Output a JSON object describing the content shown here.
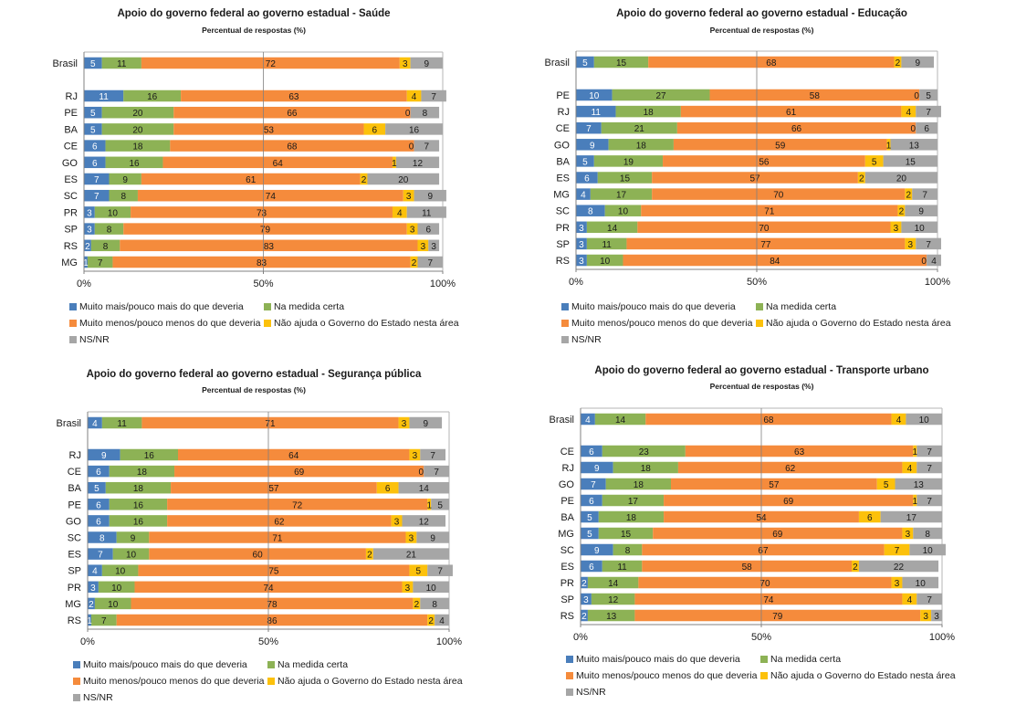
{
  "legend_labels": [
    "Muito mais/pouco mais do que deveria",
    "Na medida certa",
    "Muito menos/pouco menos do que deveria",
    "Não ajuda o Governo do Estado nesta área",
    "NS/NR"
  ],
  "colors": [
    "#4a7ebb",
    "#8db255",
    "#f58b3c",
    "#fcc10b",
    "#a6a6a6"
  ],
  "chart_data": [
    {
      "type": "bar",
      "stacked": true,
      "orientation": "horizontal",
      "title": "Apoio do governo federal ao governo estadual - Saúde",
      "subtitle": "Percentual de respostas (%)",
      "categories": [
        "Brasil",
        "RJ",
        "PE",
        "BA",
        "CE",
        "GO",
        "ES",
        "SC",
        "PR",
        "SP",
        "RS",
        "MG"
      ],
      "x_ticks": [
        "0%",
        "50%",
        "100%"
      ],
      "xlim": [
        0,
        100
      ],
      "legend_position": "bottom",
      "series": [
        {
          "name": "Muito mais/pouco mais do que deveria",
          "values": [
            5,
            11,
            5,
            5,
            6,
            6,
            7,
            7,
            3,
            3,
            2,
            1
          ]
        },
        {
          "name": "Na medida certa",
          "values": [
            11,
            16,
            20,
            20,
            18,
            16,
            9,
            8,
            10,
            8,
            8,
            7
          ]
        },
        {
          "name": "Muito menos/pouco menos do que deveria",
          "values": [
            72,
            63,
            66,
            53,
            68,
            64,
            61,
            74,
            73,
            79,
            83,
            83
          ]
        },
        {
          "name": "Não ajuda o Governo do Estado nesta área",
          "values": [
            3,
            4,
            0,
            6,
            0,
            1,
            2,
            3,
            4,
            3,
            3,
            2
          ]
        },
        {
          "name": "NS/NR",
          "values": [
            9,
            7,
            8,
            16,
            7,
            12,
            20,
            9,
            11,
            6,
            3,
            7
          ]
        }
      ]
    },
    {
      "type": "bar",
      "stacked": true,
      "orientation": "horizontal",
      "title": "Apoio do governo federal ao governo estadual - Educação",
      "subtitle": "Percentual de respostas (%)",
      "categories": [
        "Brasil",
        "PE",
        "RJ",
        "CE",
        "GO",
        "BA",
        "ES",
        "MG",
        "SC",
        "PR",
        "SP",
        "RS"
      ],
      "x_ticks": [
        "0%",
        "50%",
        "100%"
      ],
      "xlim": [
        0,
        100
      ],
      "legend_position": "bottom",
      "series": [
        {
          "name": "Muito mais/pouco mais do que deveria",
          "values": [
            5,
            10,
            11,
            7,
            9,
            5,
            6,
            4,
            8,
            3,
            3,
            3
          ]
        },
        {
          "name": "Na medida certa",
          "values": [
            15,
            27,
            18,
            21,
            18,
            19,
            15,
            17,
            10,
            14,
            11,
            10
          ]
        },
        {
          "name": "Muito menos/pouco menos do que deveria",
          "values": [
            68,
            58,
            61,
            66,
            59,
            56,
            57,
            70,
            71,
            70,
            77,
            84
          ]
        },
        {
          "name": "Não ajuda o Governo do Estado nesta área",
          "values": [
            2,
            0,
            4,
            0,
            1,
            5,
            2,
            2,
            2,
            3,
            3,
            0
          ]
        },
        {
          "name": "NS/NR",
          "values": [
            9,
            5,
            7,
            6,
            13,
            15,
            20,
            7,
            9,
            10,
            7,
            4
          ]
        }
      ]
    },
    {
      "type": "bar",
      "stacked": true,
      "orientation": "horizontal",
      "title": "Apoio do governo federal ao governo estadual - Segurança pública",
      "subtitle": "Percentual de respostas (%)",
      "categories": [
        "Brasil",
        "RJ",
        "CE",
        "BA",
        "PE",
        "GO",
        "SC",
        "ES",
        "SP",
        "PR",
        "MG",
        "RS"
      ],
      "x_ticks": [
        "0%",
        "50%",
        "100%"
      ],
      "xlim": [
        0,
        100
      ],
      "legend_position": "bottom",
      "series": [
        {
          "name": "Muito mais/pouco mais do que deveria",
          "values": [
            4,
            9,
            6,
            5,
            6,
            6,
            8,
            7,
            4,
            3,
            2,
            1
          ]
        },
        {
          "name": "Na medida certa",
          "values": [
            11,
            16,
            18,
            18,
            16,
            16,
            9,
            10,
            10,
            10,
            10,
            7
          ]
        },
        {
          "name": "Muito menos/pouco menos do que deveria",
          "values": [
            71,
            64,
            69,
            57,
            72,
            62,
            71,
            60,
            75,
            74,
            78,
            86
          ]
        },
        {
          "name": "Não ajuda o Governo do Estado nesta área",
          "values": [
            3,
            3,
            0,
            6,
            1,
            3,
            3,
            2,
            5,
            3,
            2,
            2
          ]
        },
        {
          "name": "NS/NR",
          "values": [
            9,
            7,
            7,
            14,
            5,
            12,
            9,
            21,
            7,
            10,
            8,
            4
          ]
        }
      ]
    },
    {
      "type": "bar",
      "stacked": true,
      "orientation": "horizontal",
      "title": "Apoio do governo federal ao governo estadual - Transporte urbano",
      "subtitle": "Percentual de respostas (%)",
      "categories": [
        "Brasil",
        "CE",
        "RJ",
        "GO",
        "PE",
        "BA",
        "MG",
        "SC",
        "ES",
        "PR",
        "SP",
        "RS"
      ],
      "x_ticks": [
        "0%",
        "50%",
        "100%"
      ],
      "xlim": [
        0,
        100
      ],
      "legend_position": "bottom",
      "series": [
        {
          "name": "Muito mais/pouco mais do que deveria",
          "values": [
            4,
            6,
            9,
            7,
            6,
            5,
            5,
            9,
            6,
            2,
            3,
            2
          ]
        },
        {
          "name": "Na medida certa",
          "values": [
            14,
            23,
            18,
            18,
            17,
            18,
            15,
            8,
            11,
            14,
            12,
            13
          ]
        },
        {
          "name": "Muito menos/pouco menos do que deveria",
          "values": [
            68,
            63,
            62,
            57,
            69,
            54,
            69,
            67,
            58,
            70,
            74,
            79
          ]
        },
        {
          "name": "Não ajuda o Governo do Estado nesta área",
          "values": [
            4,
            1,
            4,
            5,
            1,
            6,
            3,
            7,
            2,
            3,
            4,
            3
          ]
        },
        {
          "name": "NS/NR",
          "values": [
            10,
            7,
            7,
            13,
            7,
            17,
            8,
            10,
            22,
            10,
            7,
            3
          ]
        }
      ]
    }
  ]
}
